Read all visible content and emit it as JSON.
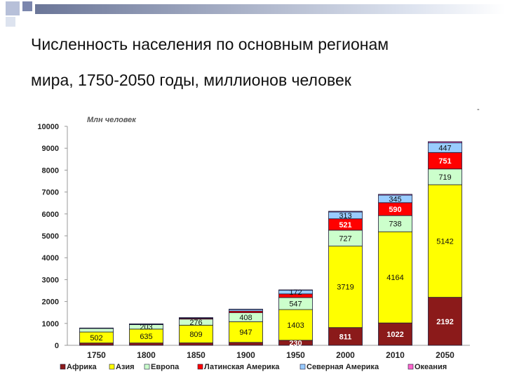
{
  "slide": {
    "title_line1": "Численность населения по основным регионам",
    "title_line2": "мира, 1750-2050 годы,  миллионов человек",
    "decoration_colors": [
      "#b7c0d9",
      "#dde3ef",
      "#7b86ad"
    ]
  },
  "chart_data": {
    "type": "bar",
    "stacked": true,
    "ylabel": "Млн человек",
    "ylim": [
      0,
      10000
    ],
    "yticks": [
      0,
      1000,
      2000,
      3000,
      4000,
      5000,
      6000,
      7000,
      8000,
      9000,
      10000
    ],
    "categories": [
      "1750",
      "1800",
      "1850",
      "1900",
      "1950",
      "2000",
      "2010",
      "2050"
    ],
    "legend_position": "bottom",
    "grid": false,
    "series": [
      {
        "name": "Африка",
        "color": "#8b1a1a",
        "values": [
          106,
          107,
          111,
          133,
          230,
          811,
          1022,
          2192
        ]
      },
      {
        "name": "Азия",
        "color": "#ffff00",
        "values": [
          502,
          635,
          809,
          947,
          1403,
          3719,
          4164,
          5142
        ]
      },
      {
        "name": "Европа",
        "color": "#ccffcc",
        "values": [
          163,
          203,
          276,
          408,
          547,
          727,
          738,
          719
        ]
      },
      {
        "name": "Латинская Америка",
        "color": "#ff0000",
        "values": [
          16,
          24,
          38,
          74,
          167,
          521,
          590,
          751
        ]
      },
      {
        "name": "Северная Америка",
        "color": "#99ccff",
        "values": [
          2,
          7,
          26,
          82,
          172,
          313,
          345,
          447
        ]
      },
      {
        "name": "Океания",
        "color": "#ff66cc",
        "values": [
          2,
          2,
          2,
          6,
          13,
          31,
          37,
          51
        ]
      }
    ],
    "data_labels": [
      [
        "",
        "502",
        "",
        "",
        "",
        ""
      ],
      [
        "",
        "635",
        "203",
        "",
        "",
        ""
      ],
      [
        "",
        "809",
        "276",
        "",
        "",
        ""
      ],
      [
        "",
        "947",
        "408",
        "",
        "",
        ""
      ],
      [
        "230",
        "1403",
        "547",
        "",
        "172",
        ""
      ],
      [
        "811",
        "3719",
        "727",
        "521",
        "313",
        ""
      ],
      [
        "1022",
        "4164",
        "738",
        "590",
        "345",
        ""
      ],
      [
        "2192",
        "5142",
        "719",
        "751",
        "447",
        ""
      ]
    ]
  }
}
